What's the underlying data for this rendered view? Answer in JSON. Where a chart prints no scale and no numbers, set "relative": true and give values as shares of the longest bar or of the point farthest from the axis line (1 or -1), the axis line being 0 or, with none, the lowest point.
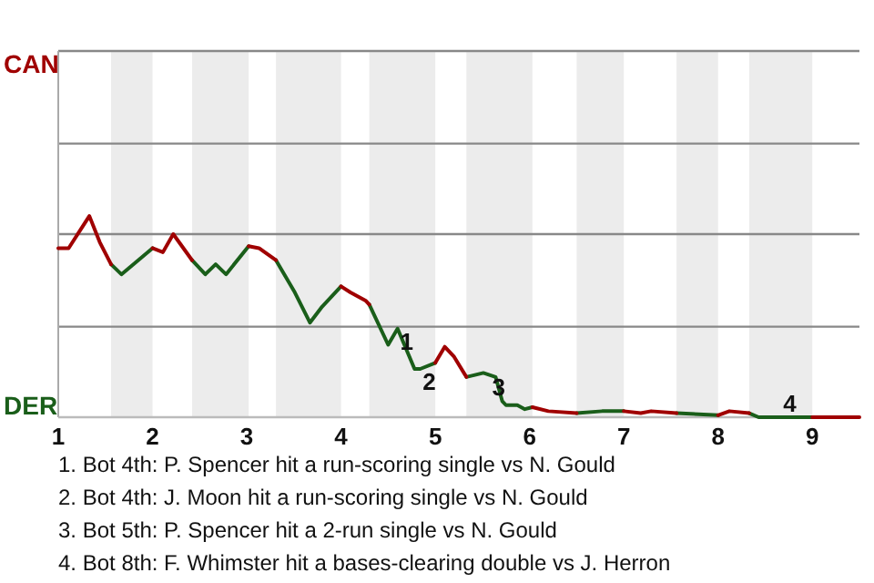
{
  "chart_data": {
    "type": "line",
    "relative": true,
    "xlim": [
      1,
      9.5
    ],
    "xticks": [
      1,
      2,
      3,
      4,
      5,
      6,
      7,
      8,
      9
    ],
    "legend": "left",
    "ref_lines": [
      {
        "axis": "y",
        "value": 0.45,
        "color": "#888888"
      },
      {
        "axis": "y",
        "value": 0.91,
        "color": "#888888"
      },
      {
        "axis": "y",
        "value": 1.36,
        "color": "#888888"
      },
      {
        "axis": "y",
        "value": 1.82,
        "color": "#888888"
      }
    ],
    "marker": "none",
    "line_style": "solid",
    "series": [
      {
        "name": "CAN",
        "color": "#a00000",
        "x": [
          1.0,
          1.11,
          1.33,
          1.44,
          1.56,
          1.78,
          2.0,
          2.11,
          2.22,
          2.42,
          2.72,
          3.02,
          3.13,
          3.31,
          3.67,
          4.0,
          4.1,
          4.26,
          4.3,
          4.65,
          5.0,
          5.1,
          5.2,
          5.33,
          5.67,
          6.03,
          6.2,
          6.5,
          6.75,
          7.0,
          7.18,
          7.29,
          7.56,
          7.78,
          8.0,
          8.12,
          8.33,
          8.64,
          9.0,
          9.5
        ],
        "values": [
          0.84,
          0.84,
          1,
          0.87,
          0.76,
          null,
          0.84,
          0.82,
          0.91,
          0.78,
          null,
          0.85,
          0.84,
          0.78,
          null,
          0.65,
          0.62,
          0.58,
          0.56,
          null,
          0.27,
          0.35,
          0.3,
          0.2,
          null,
          0.05,
          0.03,
          0.02,
          null,
          0.03,
          0.02,
          0.03,
          0.02,
          null,
          0.01,
          0.03,
          0.02,
          null,
          0,
          0
        ]
      },
      {
        "name": "DER",
        "color": "#1a5e1a",
        "x": [
          1.56,
          1.67,
          2.0,
          2.22,
          2.42,
          2.56,
          2.67,
          2.78,
          3.02,
          3.17,
          3.31,
          3.51,
          3.67,
          3.8,
          4.0,
          4.15,
          4.3,
          4.5,
          4.6,
          4.78,
          4.84,
          5.0,
          5.17,
          5.33,
          5.51,
          5.64,
          5.71,
          5.75,
          5.87,
          5.95,
          6.03,
          6.25,
          6.5,
          6.77,
          7.0,
          7.28,
          7.56,
          8.0,
          8.18,
          8.33,
          8.43,
          8.8,
          9.0
        ],
        "values": [
          0.76,
          0.71,
          0.84,
          null,
          0.78,
          0.71,
          0.76,
          0.71,
          0.85,
          null,
          0.78,
          0.62,
          0.47,
          0.55,
          0.65,
          null,
          0.56,
          0.36,
          0.44,
          0.24,
          0.24,
          0.27,
          null,
          0.2,
          0.22,
          0.2,
          0.08,
          0.06,
          0.06,
          0.04,
          0.05,
          null,
          0.02,
          0.03,
          0.03,
          null,
          0.02,
          0.01,
          null,
          0.02,
          0,
          0,
          0
        ]
      }
    ],
    "bands": [
      {
        "axis": "x",
        "from": 1.56,
        "to": 2.0,
        "color": "#ececec"
      },
      {
        "axis": "x",
        "from": 2.42,
        "to": 3.02,
        "color": "#ececec"
      },
      {
        "axis": "x",
        "from": 3.31,
        "to": 4.0,
        "color": "#ececec"
      },
      {
        "axis": "x",
        "from": 4.3,
        "to": 5.0,
        "color": "#ececec"
      },
      {
        "axis": "x",
        "from": 5.33,
        "to": 6.03,
        "color": "#ececec"
      },
      {
        "axis": "x",
        "from": 6.5,
        "to": 7.0,
        "color": "#ececec"
      },
      {
        "axis": "x",
        "from": 7.56,
        "to": 8.0,
        "color": "#ececec"
      },
      {
        "axis": "x",
        "from": 8.33,
        "to": 9.0,
        "color": "#ececec"
      }
    ],
    "annotations": [
      {
        "text": "1",
        "x": 4.6,
        "y": 0.44
      },
      {
        "text": "2",
        "x": 4.84,
        "y": 0.24
      },
      {
        "text": "3",
        "x": 5.71,
        "y": 0.08
      },
      {
        "text": "4",
        "x": 8.8,
        "y": 0
      },
      "1. Bot 4th: P. Spencer hit a run-scoring single vs N. Gould",
      "2. Bot 4th: J. Moon hit a run-scoring single vs N. Gould",
      "3. Bot 5th: P. Spencer hit a 2-run single vs N. Gould",
      "4. Bot 8th: F. Whimster hit a bases-clearing double vs J. Herron"
    ]
  }
}
